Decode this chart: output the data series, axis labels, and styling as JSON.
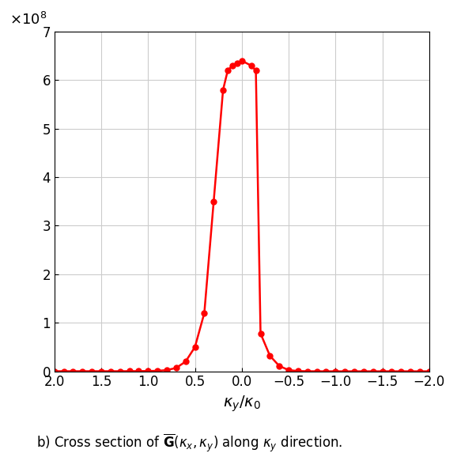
{
  "title": "",
  "xlabel": "$\\kappa_y/\\kappa_0$",
  "ylabel_exp": 8,
  "line_color": "#ff0000",
  "background_color": "#ffffff",
  "grid_color": "#cccccc",
  "xlim": [
    2,
    -2
  ],
  "ylim": [
    0,
    700000000.0
  ],
  "yticks": [
    0,
    100000000.0,
    200000000.0,
    300000000.0,
    400000000.0,
    500000000.0,
    600000000.0,
    700000000.0
  ],
  "xticks": [
    2,
    1.5,
    1,
    0.5,
    0,
    -0.5,
    -1,
    -1.5,
    -2
  ],
  "x_data": [
    2.0,
    1.9,
    1.8,
    1.7,
    1.6,
    1.5,
    1.4,
    1.3,
    1.2,
    1.1,
    1.0,
    0.9,
    0.8,
    0.7,
    0.6,
    0.5,
    0.4,
    0.3,
    0.2,
    0.15,
    0.1,
    0.05,
    0.0,
    -0.1,
    -0.15,
    -0.2,
    -0.3,
    -0.4,
    -0.5,
    -0.6,
    -0.7,
    -0.8,
    -0.9,
    -1.0,
    -1.1,
    -1.2,
    -1.3,
    -1.4,
    -1.5,
    -1.6,
    -1.7,
    -1.8,
    -1.9,
    -2.0
  ],
  "y_data": [
    200000.0,
    200000.0,
    200000.0,
    200000.0,
    200000.0,
    200000.0,
    200000.0,
    200000.0,
    300000.0,
    400000.0,
    600000.0,
    1000000.0,
    2500000.0,
    7000000.0,
    20000000.0,
    50000000.0,
    120000000.0,
    350000000.0,
    580000000.0,
    620000000.0,
    630000000.0,
    635000000.0,
    640000000.0,
    630000000.0,
    620000000.0,
    78000000.0,
    32000000.0,
    11000000.0,
    2500000.0,
    600000.0,
    150000.0,
    50000.0,
    20000.0,
    8000.0,
    4000.0,
    2000.0,
    1500.0,
    1000.0,
    800.0,
    600.0,
    500.0,
    400.0,
    300.0,
    200.0
  ],
  "caption": "b) Cross section of $\\overline{\\mathbf{G}}(\\kappa_x, \\kappa_y)$ along $\\kappa_y$ direction."
}
